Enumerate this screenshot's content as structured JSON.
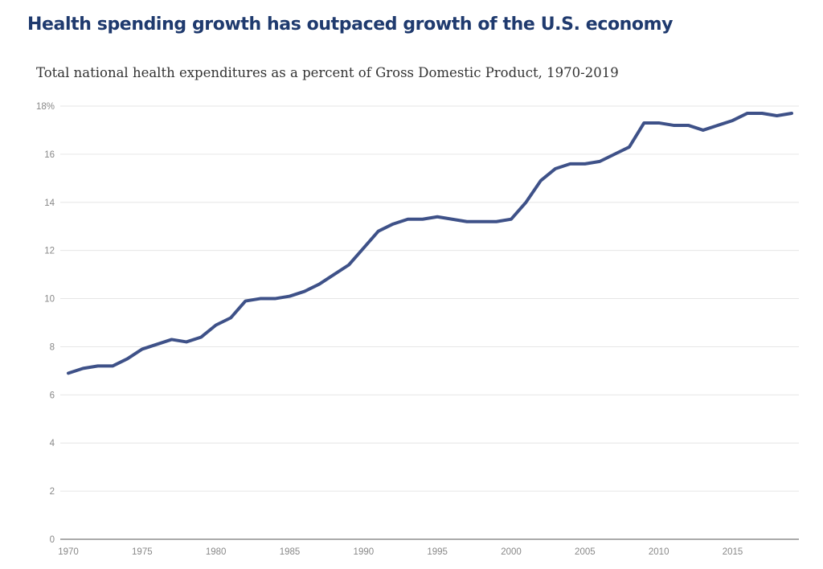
{
  "colors": {
    "title": "#1f3a6e",
    "series": "#3e5188"
  },
  "chart_data": {
    "type": "line",
    "title": "Health spending growth has outpaced growth of the U.S. economy",
    "subtitle": "Total national health expenditures as a percent of Gross Domestic Product, 1970-2019",
    "xlabel": "",
    "ylabel": "",
    "xlim": [
      1970,
      2019
    ],
    "ylim": [
      0,
      18
    ],
    "grid": true,
    "legend": "none",
    "x_ticks": [
      "1970",
      "1975",
      "1980",
      "1985",
      "1990",
      "1995",
      "2000",
      "2005",
      "2010",
      "2015"
    ],
    "y_ticks": [
      "0",
      "2",
      "4",
      "6",
      "8",
      "10",
      "12",
      "14",
      "16",
      "18%"
    ],
    "x": [
      1970,
      1971,
      1972,
      1973,
      1974,
      1975,
      1976,
      1977,
      1978,
      1979,
      1980,
      1981,
      1982,
      1983,
      1984,
      1985,
      1986,
      1987,
      1988,
      1989,
      1990,
      1991,
      1992,
      1993,
      1994,
      1995,
      1996,
      1997,
      1998,
      1999,
      2000,
      2001,
      2002,
      2003,
      2004,
      2005,
      2006,
      2007,
      2008,
      2009,
      2010,
      2011,
      2012,
      2013,
      2014,
      2015,
      2016,
      2017,
      2018,
      2019
    ],
    "series": [
      {
        "values": [
          6.9,
          7.1,
          7.2,
          7.2,
          7.5,
          7.9,
          8.1,
          8.3,
          8.2,
          8.4,
          8.9,
          9.2,
          9.9,
          10.0,
          10.0,
          10.1,
          10.3,
          10.6,
          11.0,
          11.4,
          12.1,
          12.8,
          13.1,
          13.3,
          13.3,
          13.4,
          13.3,
          13.2,
          13.2,
          13.2,
          13.3,
          14.0,
          14.9,
          15.4,
          15.6,
          15.6,
          15.7,
          16.0,
          16.3,
          17.3,
          17.3,
          17.2,
          17.2,
          17.0,
          17.2,
          17.4,
          17.7,
          17.7,
          17.6,
          17.7
        ]
      }
    ]
  }
}
